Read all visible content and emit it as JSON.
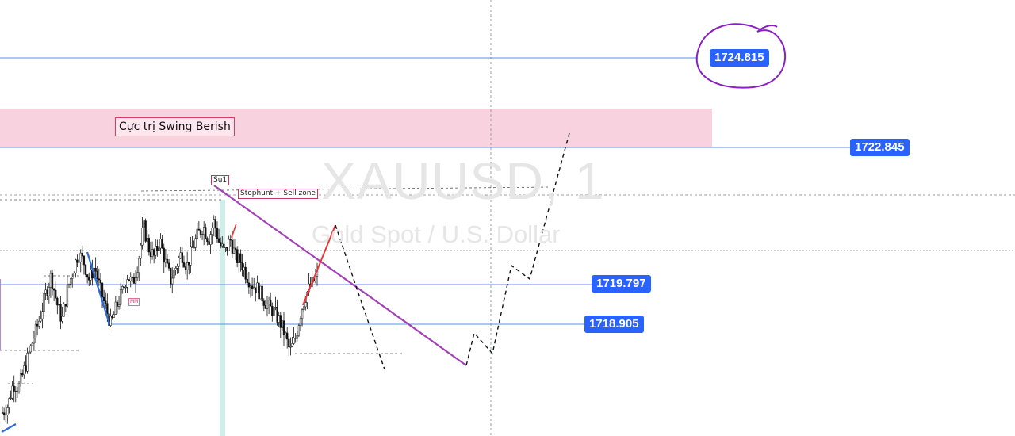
{
  "chart": {
    "symbol_watermark": "XAUUSD, 1",
    "description_watermark": "Gold Spot / U.S. Dollar"
  },
  "annotations": {
    "zone_label": "Cực trị Swing Berish",
    "swing_tag": "Su1",
    "stophunt_tag": "Stophunt + Sell zone",
    "mm_tag": "MM"
  },
  "price_labels": {
    "top": "1724.815",
    "zone": "1722.845",
    "mid": "1719.797",
    "low": "1718.905"
  },
  "colors": {
    "accent_blue": "#2962ff",
    "zone_fill": "#f8d3df",
    "trendline": "#a540b8",
    "circle": "#8a1fc4",
    "impulse": "#e8363a",
    "vertical_band": "#cfeee7"
  },
  "chart_data": {
    "type": "candlestick",
    "title": "XAUUSD, 1",
    "subtitle": "Gold Spot / U.S. Dollar",
    "horizontal_levels": [
      1724.815,
      1722.845,
      1719.797,
      1718.905
    ],
    "supply_zone": {
      "label": "Cực trị Swing Berish",
      "upper": 1723.8,
      "lower": 1722.845
    },
    "close_path": [
      1716.95,
      1717.1,
      1717.6,
      1717.5,
      1717.9,
      1718.3,
      1718.7,
      1719.1,
      1719.6,
      1720.0,
      1719.4,
      1719.0,
      1719.7,
      1720.1,
      1720.5,
      1720.3,
      1719.9,
      1720.2,
      1719.7,
      1719.3,
      1718.9,
      1719.3,
      1719.6,
      1720.0,
      1719.8,
      1720.3,
      1721.1,
      1720.6,
      1720.4,
      1720.8,
      1720.3,
      1719.9,
      1720.2,
      1720.5,
      1720.2,
      1720.6,
      1720.9,
      1721.1,
      1720.8,
      1721.2,
      1720.7,
      1720.5,
      1720.8,
      1720.4,
      1720.3,
      1720.0,
      1719.8,
      1719.7,
      1719.5,
      1719.3,
      1719.2,
      1719.0,
      1718.7,
      1718.3,
      1718.6,
      1719.2,
      1719.6,
      1719.8,
      1720.0
    ],
    "projection_path": [
      1720.4,
      1718.1,
      1718.6,
      1718.4,
      1719.4,
      1719.2,
      1720.6,
      1722.3
    ]
  }
}
